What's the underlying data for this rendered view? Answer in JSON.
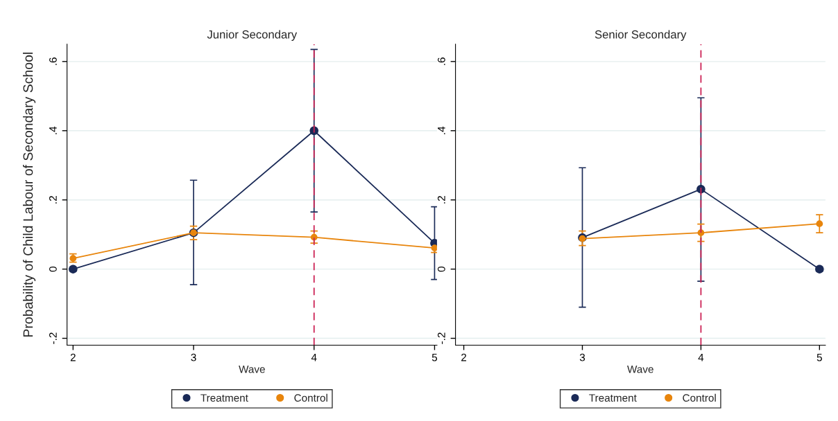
{
  "chart_data": [
    {
      "type": "line",
      "title": "Junior Secondary",
      "xlabel": "Wave",
      "ylabel": "Probability of Child Labour of Secondary School",
      "xlim": [
        1.95,
        5.02
      ],
      "xticks": [
        2,
        3,
        4,
        5
      ],
      "ylim": [
        -0.22,
        0.65
      ],
      "yticks": [
        {
          "value": -0.2,
          "label": "-.2"
        },
        0,
        {
          "value": 0.2,
          "label": ".2"
        },
        {
          "value": 0.4,
          "label": ".4"
        },
        {
          "value": 0.6,
          "label": ".6"
        }
      ],
      "grid": "y",
      "legend": "bottom",
      "marker": "circle",
      "series": [
        {
          "name": "Treatment",
          "color": "#1a2a57",
          "x": [
            2,
            3,
            4,
            5
          ],
          "values": [
            0,
            0.105,
            0.4,
            0.075
          ],
          "errors": [
            null,
            [
              -0.045,
              0.257
            ],
            [
              0.165,
              0.635
            ],
            [
              -0.03,
              0.18
            ]
          ]
        },
        {
          "name": "Control",
          "color": "#e8850c",
          "x": [
            2,
            3,
            4,
            5
          ],
          "values": [
            0.031,
            0.105,
            0.092,
            0.061
          ],
          "errors": [
            [
              0.02,
              0.044
            ],
            [
              0.085,
              0.124
            ],
            [
              0.075,
              0.11
            ],
            [
              0.048,
              0.072
            ]
          ]
        }
      ],
      "ref_lines": [
        {
          "axis": "x",
          "value": 4,
          "color": "#cc2255",
          "line_style": "dashed"
        }
      ]
    },
    {
      "type": "line",
      "title": "Senior Secondary",
      "xlabel": "Wave",
      "xlim": [
        1.93,
        5.05
      ],
      "xticks": [
        2,
        3,
        4,
        5
      ],
      "ylim": [
        -0.22,
        0.65
      ],
      "yticks": [
        {
          "value": -0.2,
          "label": "-.2"
        },
        0,
        {
          "value": 0.2,
          "label": ".2"
        },
        {
          "value": 0.4,
          "label": ".4"
        },
        {
          "value": 0.6,
          "label": ".6"
        }
      ],
      "grid": "y",
      "legend": "bottom",
      "marker": "circle",
      "series": [
        {
          "name": "Treatment",
          "color": "#1a2a57",
          "x": [
            3,
            4,
            5
          ],
          "values": [
            0.091,
            0.231,
            0
          ],
          "errors": [
            [
              -0.11,
              0.293
            ],
            [
              -0.035,
              0.495
            ],
            null
          ]
        },
        {
          "name": "Control",
          "color": "#e8850c",
          "x": [
            3,
            4,
            5
          ],
          "values": [
            0.088,
            0.105,
            0.131
          ],
          "errors": [
            [
              0.068,
              0.11
            ],
            [
              0.08,
              0.13
            ],
            [
              0.105,
              0.157
            ]
          ]
        }
      ],
      "ref_lines": [
        {
          "axis": "x",
          "value": 4,
          "color": "#cc2255",
          "line_style": "dashed"
        }
      ]
    }
  ]
}
